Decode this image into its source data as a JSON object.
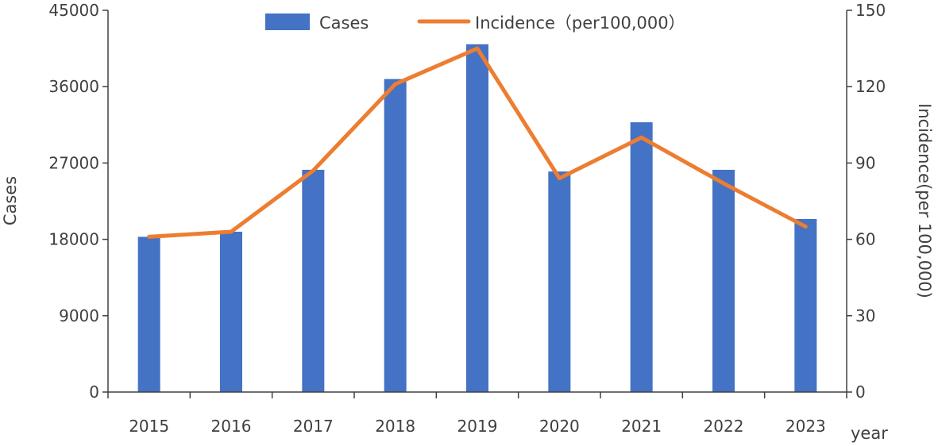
{
  "chart_data": {
    "type": "bar",
    "categories": [
      "2015",
      "2016",
      "2017",
      "2018",
      "2019",
      "2020",
      "2021",
      "2022",
      "2023"
    ],
    "series": [
      {
        "name": "Cases",
        "type": "bar",
        "axis": "left",
        "values": [
          18300,
          18900,
          26200,
          36900,
          41000,
          26000,
          31800,
          26200,
          20400
        ]
      },
      {
        "name": "Incidence（per100,000）",
        "type": "line",
        "axis": "right",
        "values": [
          61,
          63,
          87,
          121,
          135,
          84,
          100,
          82,
          65
        ]
      }
    ],
    "xlabel": "year",
    "ylabel": "Cases",
    "y2label": "Incidence(per 100,000)",
    "ylim": [
      0,
      45000
    ],
    "y2lim": [
      0,
      150
    ],
    "yticks": [
      0,
      9000,
      18000,
      27000,
      36000,
      45000
    ],
    "y2ticks": [
      0,
      30,
      60,
      90,
      120,
      150
    ],
    "grid": false,
    "legend": "top-center",
    "colors": {
      "bar": "#4472C4",
      "line": "#ED7D31",
      "axis": "#404040"
    }
  }
}
